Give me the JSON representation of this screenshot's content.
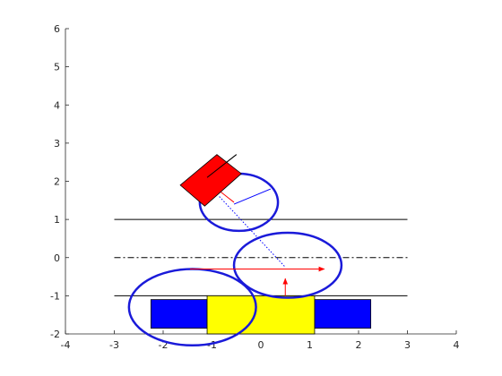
{
  "chart_data": {
    "type": "diagram",
    "title": "",
    "xlabel": "",
    "ylabel": "",
    "xlim": [
      -4,
      4
    ],
    "ylim": [
      -2,
      6
    ],
    "x_ticks": [
      "-4",
      "-3",
      "-2",
      "-1",
      "0",
      "1",
      "2",
      "3",
      "4"
    ],
    "y_ticks": [
      "-2",
      "-1",
      "0",
      "1",
      "2",
      "3",
      "4",
      "5",
      "6"
    ],
    "grid": false,
    "lines": [
      {
        "role": "upper-boundary",
        "style": "solid",
        "color": "#000000",
        "x": [
          -3,
          3
        ],
        "y": [
          1,
          1
        ]
      },
      {
        "role": "centerline",
        "style": "dash-dot",
        "color": "#000000",
        "x": [
          -3,
          3
        ],
        "y": [
          0,
          0
        ]
      },
      {
        "role": "lower-boundary",
        "style": "solid",
        "color": "#000000",
        "x": [
          -3,
          3
        ],
        "y": [
          -1,
          -1
        ]
      }
    ],
    "ellipses": [
      {
        "role": "lower-ellipse",
        "cx": -1.4,
        "cy": -1.3,
        "rx": 1.3,
        "ry": 1.0,
        "color": "#1a1ad9"
      },
      {
        "role": "middle-ellipse",
        "cx": 0.55,
        "cy": -0.2,
        "rx": 1.1,
        "ry": 0.85,
        "color": "#1a1ad9"
      },
      {
        "role": "upper-ellipse",
        "cx": -0.45,
        "cy": 1.45,
        "rx": 0.8,
        "ry": 0.75,
        "color": "#1a1ad9"
      }
    ],
    "boxes": [
      {
        "role": "left-wheel",
        "x": [
          -2.25,
          -1.1
        ],
        "y": [
          -1.85,
          -1.1
        ],
        "color": "#0000ff"
      },
      {
        "role": "right-wheel",
        "x": [
          1.1,
          2.25
        ],
        "y": [
          -1.85,
          -1.1
        ],
        "color": "#0000ff"
      },
      {
        "role": "base-body",
        "x": [
          -1.1,
          1.1
        ],
        "y": [
          -2.0,
          -1.0
        ],
        "color": "#ffff00"
      }
    ],
    "tilted_box": {
      "role": "end-effector",
      "corners": [
        [
          -1.65,
          1.9
        ],
        [
          -0.9,
          2.7
        ],
        [
          -0.4,
          2.2
        ],
        [
          -1.15,
          1.35
        ]
      ],
      "color": "#ff0000"
    },
    "arrows": [
      {
        "role": "red-horizontal",
        "from": [
          -1.45,
          -0.3
        ],
        "to": [
          1.3,
          -0.3
        ],
        "color": "#ff0000"
      },
      {
        "role": "red-vertical",
        "from": [
          0.5,
          -1.0
        ],
        "to": [
          0.5,
          -0.55
        ],
        "color": "#ff0000"
      }
    ],
    "segments": [
      {
        "role": "dotted-link",
        "x": [
          -0.85,
          0.5
        ],
        "y": [
          1.6,
          -0.25
        ],
        "color": "#0000ff",
        "style": "dotted"
      },
      {
        "role": "blue-normal",
        "x": [
          -0.55,
          0.2
        ],
        "y": [
          1.4,
          1.8
        ],
        "color": "#0000ff",
        "style": "solid"
      },
      {
        "role": "black-tool",
        "x": [
          -1.1,
          -0.5
        ],
        "y": [
          2.1,
          2.7
        ],
        "color": "#000000",
        "style": "solid"
      },
      {
        "role": "red-link",
        "x": [
          -0.85,
          -0.55
        ],
        "y": [
          1.75,
          1.45
        ],
        "color": "#ff0000",
        "style": "solid"
      }
    ]
  }
}
